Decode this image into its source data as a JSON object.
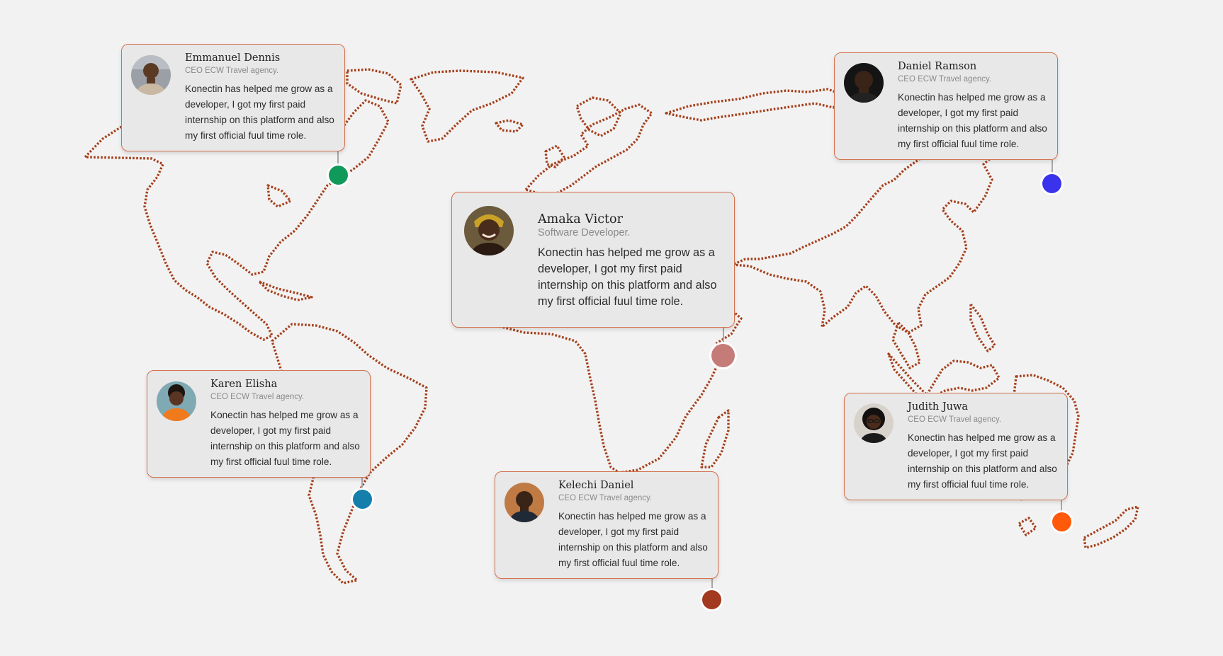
{
  "colors": {
    "background": "#f3f2f2",
    "map_outline": "#a4401c",
    "card_border": "#d3714d",
    "card_fill": "#e9e8e8"
  },
  "testimonials": [
    {
      "name": "Emmanuel Dennis",
      "role": "CEO ECW Travel agency.",
      "quote": "Konectin has helped me grow as a developer, I got my first paid internship on this platform and also my first official fuul time role.",
      "pin_color": "#0f9a5a"
    },
    {
      "name": "Daniel Ramson",
      "role": "CEO ECW Travel agency.",
      "quote": "Konectin has helped me grow as a developer, I got my first paid internship on this platform and also my first official fuul time role.",
      "pin_color": "#3b33ec"
    },
    {
      "name": "Amaka Victor",
      "role": "Software Developer.",
      "quote": "Konectin has helped me grow as a developer, I got my first paid internship on this platform and also my first official fuul time role.",
      "pin_color": "#c57b78"
    },
    {
      "name": "Karen Elisha",
      "role": "CEO ECW Travel agency.",
      "quote": "Konectin has helped me grow as a developer, I got my first paid internship on this platform and also my first official fuul time role.",
      "pin_color": "#147fab"
    },
    {
      "name": "Kelechi Daniel",
      "role": "CEO ECW Travel agency.",
      "quote": "Konectin has helped me grow as a developer, I got my first paid internship on this platform and also my first official fuul time role.",
      "pin_color": "#a3391e"
    },
    {
      "name": "Judith Juwa",
      "role": "CEO ECW Travel agency.",
      "quote": "Konectin has helped me grow as a developer, I got my first paid internship on this platform and also my first official fuul time role.",
      "pin_color": "#ff5a0a"
    }
  ]
}
